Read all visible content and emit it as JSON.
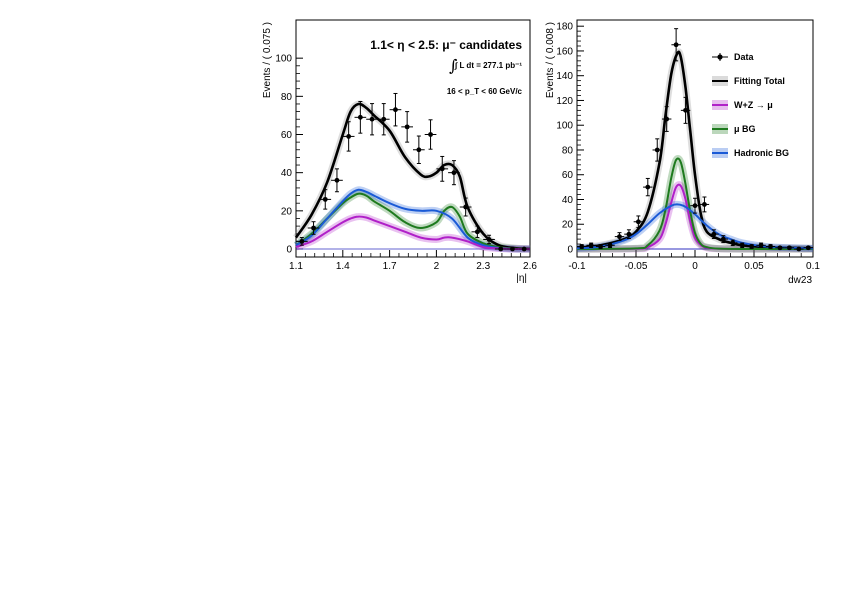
{
  "chart_data": [
    {
      "type": "line",
      "title": "1.1< η < 2.5: μ⁻ candidates",
      "annotations": {
        "lumi": "∫ L dt = 277.1 pb⁻¹",
        "pt_cut": "16 < p_T < 60 GeV/c"
      },
      "xlabel": "|η|",
      "ylabel": "Events / ( 0.075 )",
      "xlim": [
        1.1,
        2.6
      ],
      "ylim": [
        0,
        120
      ],
      "xticks": [
        "1.1",
        "1.4",
        "1.7",
        "2",
        "2.3",
        "2.6"
      ],
      "yticks": [
        "0",
        "20",
        "40",
        "60",
        "80",
        "100"
      ],
      "data_points": {
        "x": [
          1.1375,
          1.2125,
          1.2875,
          1.3625,
          1.4375,
          1.5125,
          1.5875,
          1.6625,
          1.7375,
          1.8125,
          1.8875,
          1.9625,
          2.0375,
          2.1125,
          2.1875,
          2.2625,
          2.3375,
          2.4125,
          2.4875,
          2.5625
        ],
        "y": [
          4,
          11,
          26,
          36,
          59,
          69,
          68,
          68,
          73,
          64,
          52,
          60,
          42,
          40,
          22,
          9,
          5,
          0,
          0,
          0
        ],
        "yerr": [
          2,
          3.3,
          5.1,
          6,
          7.7,
          8.3,
          8.2,
          8.2,
          8.5,
          8,
          7.2,
          7.7,
          6.5,
          6.3,
          4.7,
          3,
          2.2,
          0.5,
          0.5,
          0.5
        ]
      },
      "series": [
        {
          "name": "Fitting Total",
          "color": "#000000",
          "x": [
            1.1,
            1.2,
            1.3,
            1.4,
            1.45,
            1.5,
            1.55,
            1.6,
            1.7,
            1.8,
            1.9,
            1.95,
            2.0,
            2.05,
            2.1,
            2.15,
            2.2,
            2.3,
            2.4,
            2.5,
            2.6
          ],
          "y": [
            6,
            18,
            35,
            60,
            72,
            76,
            74,
            70,
            62,
            48,
            39,
            38,
            40,
            44,
            44,
            38,
            22,
            8,
            2,
            0.5,
            0
          ]
        },
        {
          "name": "μ BG",
          "color": "#1e7a1e",
          "x": [
            1.1,
            1.2,
            1.3,
            1.4,
            1.45,
            1.5,
            1.55,
            1.6,
            1.7,
            1.8,
            1.9,
            2.0,
            2.05,
            2.1,
            2.15,
            2.2,
            2.3,
            2.4,
            2.5,
            2.6
          ],
          "y": [
            2,
            8,
            16,
            24,
            27,
            29,
            28,
            25,
            20,
            14,
            11,
            14,
            20,
            22,
            17,
            8,
            3,
            1,
            0.2,
            0
          ]
        },
        {
          "name": "Hadronic BG",
          "color": "#1a5ad6",
          "x": [
            1.1,
            1.2,
            1.3,
            1.4,
            1.45,
            1.5,
            1.55,
            1.6,
            1.7,
            1.8,
            1.9,
            2.0,
            2.1,
            2.2,
            2.3,
            2.4,
            2.5,
            2.6
          ],
          "y": [
            2,
            7,
            16,
            25,
            29,
            31,
            30,
            28,
            24,
            21,
            20,
            20,
            16,
            6,
            2,
            0.5,
            0,
            0
          ]
        },
        {
          "name": "W+Z → μ",
          "color": "#b020c8",
          "x": [
            1.1,
            1.2,
            1.3,
            1.4,
            1.45,
            1.5,
            1.55,
            1.6,
            1.7,
            1.8,
            1.9,
            2.0,
            2.05,
            2.1,
            2.2,
            2.3,
            2.4,
            2.5,
            2.6
          ],
          "y": [
            1,
            4,
            9,
            14,
            16,
            17,
            16.5,
            15,
            12,
            9,
            6,
            5,
            6,
            6,
            4,
            1,
            0.3,
            0,
            0
          ]
        }
      ]
    },
    {
      "type": "line",
      "xlabel": "dw23",
      "ylabel": "Events / ( 0.008 )",
      "xlim": [
        -0.1,
        0.1
      ],
      "ylim": [
        0,
        185
      ],
      "xticks": [
        "-0.1",
        "-0.05",
        "0",
        "0.05",
        "0.1"
      ],
      "yticks": [
        "0",
        "20",
        "40",
        "60",
        "80",
        "100",
        "120",
        "140",
        "160",
        "180"
      ],
      "legend": {
        "placement": "top-right",
        "entries": [
          "Data",
          "Fitting Total",
          "W+Z → μ",
          "μ BG",
          "Hadronic BG"
        ]
      },
      "data_points": {
        "x": [
          -0.096,
          -0.088,
          -0.08,
          -0.072,
          -0.064,
          -0.056,
          -0.048,
          -0.04,
          -0.032,
          -0.024,
          -0.016,
          -0.008,
          0.0,
          0.008,
          0.016,
          0.024,
          0.032,
          0.04,
          0.048,
          0.056,
          0.064,
          0.072,
          0.08,
          0.088,
          0.096
        ],
        "y": [
          2,
          3,
          2,
          3,
          10,
          12,
          22,
          50,
          80,
          105,
          165,
          112,
          35,
          36,
          12,
          8,
          5,
          3,
          2,
          3,
          2,
          1,
          1,
          0,
          1
        ],
        "yerr": [
          1.5,
          1.8,
          1.5,
          1.8,
          3.2,
          3.5,
          4.7,
          7,
          9,
          10,
          13,
          10.5,
          6,
          6,
          3.5,
          2.8,
          2.2,
          1.8,
          1.5,
          1.8,
          1.5,
          1,
          1,
          0.5,
          1
        ]
      },
      "series": [
        {
          "name": "Fitting Total",
          "color": "#000000",
          "x": [
            -0.1,
            -0.08,
            -0.06,
            -0.05,
            -0.04,
            -0.03,
            -0.025,
            -0.02,
            -0.015,
            -0.012,
            -0.008,
            -0.004,
            0.0,
            0.005,
            0.01,
            0.02,
            0.03,
            0.04,
            0.06,
            0.08,
            0.1
          ],
          "y": [
            1,
            3,
            8,
            14,
            30,
            70,
            108,
            142,
            158,
            155,
            130,
            95,
            60,
            28,
            14,
            8,
            5,
            3,
            1.5,
            1,
            0.5
          ]
        },
        {
          "name": "W+Z → μ",
          "color": "#b020c8",
          "x": [
            -0.1,
            -0.05,
            -0.04,
            -0.03,
            -0.025,
            -0.02,
            -0.016,
            -0.012,
            -0.008,
            -0.004,
            0.0,
            0.005,
            0.01,
            0.02,
            0.05,
            0.1
          ],
          "y": [
            0,
            0.2,
            1.5,
            8,
            20,
            38,
            50,
            51,
            40,
            22,
            9,
            3,
            1,
            0.2,
            0,
            0
          ]
        },
        {
          "name": "μ BG",
          "color": "#1e7a1e",
          "x": [
            -0.1,
            -0.05,
            -0.04,
            -0.03,
            -0.025,
            -0.02,
            -0.016,
            -0.012,
            -0.008,
            -0.004,
            0.0,
            0.005,
            0.01,
            0.02,
            0.05,
            0.1
          ],
          "y": [
            0,
            0.5,
            3,
            15,
            32,
            58,
            72,
            70,
            52,
            30,
            13,
            4,
            1.5,
            0.3,
            0,
            0
          ]
        },
        {
          "name": "Hadronic BG",
          "color": "#1a5ad6",
          "x": [
            -0.1,
            -0.08,
            -0.06,
            -0.05,
            -0.04,
            -0.03,
            -0.02,
            -0.015,
            -0.01,
            -0.005,
            0.0,
            0.01,
            0.02,
            0.03,
            0.04,
            0.06,
            0.08,
            0.1
          ],
          "y": [
            0.5,
            2,
            7,
            12,
            20,
            29,
            35,
            36,
            35,
            32,
            28,
            19,
            12,
            8,
            5,
            2,
            1,
            0.5
          ]
        }
      ],
      "baseline_color": "#3030c0"
    }
  ]
}
